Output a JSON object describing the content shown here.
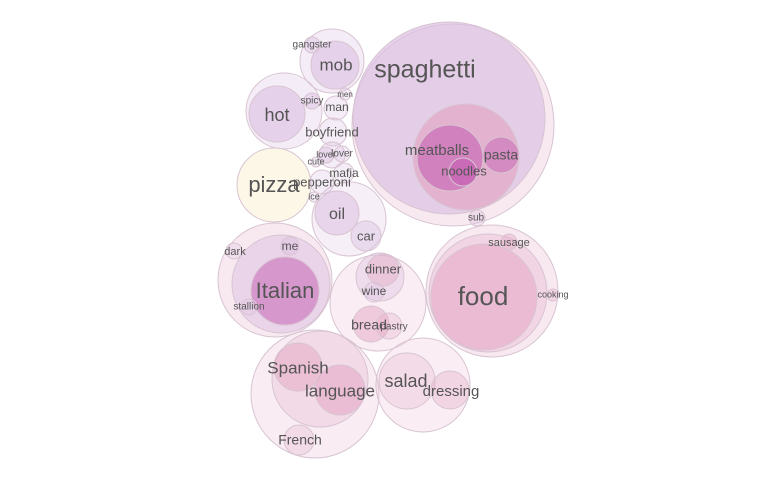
{
  "palette": {
    "lavender": "#dcc0e2",
    "pink": "#eec8dc",
    "magenta": "#c25ab0",
    "rose": "#e3a6c4",
    "cream": "#fdf7e8",
    "stroke": "#d8c4d2",
    "label": "#555555"
  },
  "bubbles": [
    {
      "id": "spaghetti-cluster",
      "label": "",
      "color": "pink",
      "alpha": 0.4
    },
    {
      "id": "spaghetti",
      "label": "spaghetti",
      "color": "lavender",
      "alpha": 0.7
    },
    {
      "id": "meatballs-group",
      "label": "",
      "color": "rose",
      "alpha": 0.7
    },
    {
      "id": "meatballs",
      "label": "meatballs",
      "color": "magenta",
      "alpha": 0.55
    },
    {
      "id": "pasta",
      "label": "pasta",
      "color": "magenta",
      "alpha": 0.45
    },
    {
      "id": "noodles",
      "label": "noodles",
      "color": "magenta",
      "alpha": 0.55
    },
    {
      "id": "sub",
      "label": "sub",
      "color": "lavender",
      "alpha": 0.4
    },
    {
      "id": "mob-group",
      "label": "",
      "color": "lavender",
      "alpha": 0.3
    },
    {
      "id": "mob",
      "label": "mob",
      "color": "lavender",
      "alpha": 0.6
    },
    {
      "id": "gangster",
      "label": "gangster",
      "color": "lavender",
      "alpha": 0.4
    },
    {
      "id": "hot-group",
      "label": "",
      "color": "lavender",
      "alpha": 0.3
    },
    {
      "id": "hot",
      "label": "hot",
      "color": "lavender",
      "alpha": 0.6
    },
    {
      "id": "spicy",
      "label": "spicy",
      "color": "lavender",
      "alpha": 0.45
    },
    {
      "id": "men",
      "label": "men",
      "color": "lavender",
      "alpha": 0.3
    },
    {
      "id": "man",
      "label": "man",
      "color": "lavender",
      "alpha": 0.3
    },
    {
      "id": "boyfriend",
      "label": "boyfriend",
      "color": "lavender",
      "alpha": 0.3
    },
    {
      "id": "lover-group",
      "label": "",
      "color": "lavender",
      "alpha": 0.3
    },
    {
      "id": "lover-big",
      "label": "lover",
      "color": "lavender",
      "alpha": 0.3
    },
    {
      "id": "lover-small",
      "label": "lover",
      "color": "lavender",
      "alpha": 0.45
    },
    {
      "id": "cute",
      "label": "cute",
      "color": "lavender",
      "alpha": 0.3
    },
    {
      "id": "mafia",
      "label": "mafia",
      "color": "lavender",
      "alpha": 0.3
    },
    {
      "id": "pizza",
      "label": "pizza",
      "color": "cream",
      "alpha": 1
    },
    {
      "id": "pepperoni",
      "label": "pepperoni",
      "color": "lavender",
      "alpha": 0.3
    },
    {
      "id": "ice",
      "label": "ice",
      "color": "lavender",
      "alpha": 0.3
    },
    {
      "id": "oil-group",
      "label": "",
      "color": "lavender",
      "alpha": 0.25
    },
    {
      "id": "oil",
      "label": "oil",
      "color": "lavender",
      "alpha": 0.55
    },
    {
      "id": "car",
      "label": "car",
      "color": "lavender",
      "alpha": 0.45
    },
    {
      "id": "italian-group",
      "label": "",
      "color": "pink",
      "alpha": 0.4
    },
    {
      "id": "italian-mid",
      "label": "",
      "color": "lavender",
      "alpha": 0.5
    },
    {
      "id": "italian",
      "label": "Italian",
      "color": "magenta",
      "alpha": 0.5
    },
    {
      "id": "me",
      "label": "me",
      "color": "lavender",
      "alpha": 0.45
    },
    {
      "id": "dark",
      "label": "dark",
      "color": "lavender",
      "alpha": 0.25
    },
    {
      "id": "stallion",
      "label": "stallion",
      "color": "lavender",
      "alpha": 0.25
    },
    {
      "id": "dinner-group",
      "label": "",
      "color": "pink",
      "alpha": 0.3
    },
    {
      "id": "dinner-inner",
      "label": "",
      "color": "lavender",
      "alpha": 0.4
    },
    {
      "id": "dinner",
      "label": "dinner",
      "color": "rose",
      "alpha": 0.4
    },
    {
      "id": "wine",
      "label": "wine",
      "color": "lavender",
      "alpha": 0.3
    },
    {
      "id": "bread",
      "label": "bread",
      "color": "rose",
      "alpha": 0.5
    },
    {
      "id": "pastry",
      "label": "pastry",
      "color": "rose",
      "alpha": 0.3
    },
    {
      "id": "food-group",
      "label": "",
      "color": "pink",
      "alpha": 0.4
    },
    {
      "id": "food-mid",
      "label": "",
      "color": "pink",
      "alpha": 0.6
    },
    {
      "id": "food",
      "label": "food",
      "color": "rose",
      "alpha": 0.55
    },
    {
      "id": "sausage",
      "label": "sausage",
      "color": "rose",
      "alpha": 0.4
    },
    {
      "id": "cooking",
      "label": "cooking",
      "color": "rose",
      "alpha": 0.3
    },
    {
      "id": "spanish-group",
      "label": "",
      "color": "pink",
      "alpha": 0.35
    },
    {
      "id": "spanish-mid",
      "label": "",
      "color": "pink",
      "alpha": 0.5
    },
    {
      "id": "spanish",
      "label": "Spanish",
      "color": "rose",
      "alpha": 0.5
    },
    {
      "id": "language",
      "label": "language",
      "color": "rose",
      "alpha": 0.55
    },
    {
      "id": "french",
      "label": "French",
      "color": "pink",
      "alpha": 0.5
    },
    {
      "id": "salad-group",
      "label": "",
      "color": "pink",
      "alpha": 0.3
    },
    {
      "id": "salad",
      "label": "salad",
      "color": "pink",
      "alpha": 0.5
    },
    {
      "id": "dressing",
      "label": "dressing",
      "color": "rose",
      "alpha": 0.35
    }
  ]
}
